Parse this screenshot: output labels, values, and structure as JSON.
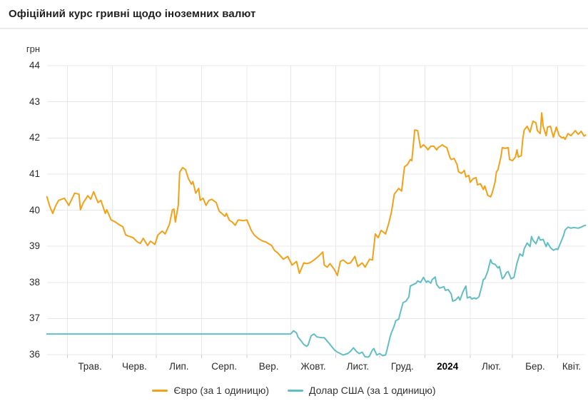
{
  "title": "Офіційний курс гривні щодо іноземних валют",
  "chart_data": {
    "type": "line",
    "title": "Офіційний курс гривні щодо іноземних валют",
    "y_axis_unit": "грн",
    "ylim": [
      36,
      44
    ],
    "y_ticks": [
      44,
      43,
      42,
      41,
      40,
      39,
      38,
      37,
      36
    ],
    "grid": true,
    "legend_position": "bottom",
    "x_domain_days": 369,
    "month_start_days": [
      14,
      45,
      75,
      106,
      137,
      167,
      198,
      228,
      259,
      290,
      319,
      350
    ],
    "x_month_labels": [
      "Трав.",
      "Черв.",
      "Лип.",
      "Серп.",
      "Вер.",
      "Жовт.",
      "Лист.",
      "Груд.",
      "2024",
      "Лют.",
      "Бер.",
      "Квіт."
    ],
    "bold_x_label": "2024",
    "colors": {
      "grid": "#e8e8e8",
      "tick": "#c9c9c9",
      "axis_text": "#2b2b2b"
    },
    "series": [
      {
        "id": "euro",
        "name": "Євро (за 1 одиницю)",
        "color": "#f2a119",
        "points": [
          [
            0,
            40.37
          ],
          [
            2,
            40.1
          ],
          [
            4,
            39.91
          ],
          [
            6,
            40.12
          ],
          [
            8,
            40.27
          ],
          [
            12,
            40.33
          ],
          [
            14,
            40.2
          ],
          [
            15,
            40.13
          ],
          [
            17,
            40.3
          ],
          [
            19,
            40.47
          ],
          [
            22,
            40.44
          ],
          [
            23,
            40.01
          ],
          [
            25,
            40.21
          ],
          [
            28,
            40.4
          ],
          [
            30,
            40.3
          ],
          [
            32,
            40.51
          ],
          [
            35,
            40.21
          ],
          [
            37,
            40.27
          ],
          [
            40,
            39.91
          ],
          [
            41,
            40.01
          ],
          [
            44,
            39.73
          ],
          [
            47,
            39.67
          ],
          [
            49,
            39.61
          ],
          [
            52,
            39.54
          ],
          [
            54,
            39.31
          ],
          [
            56,
            39.28
          ],
          [
            59,
            39.24
          ],
          [
            62,
            39.12
          ],
          [
            64,
            39.08
          ],
          [
            66,
            39.22
          ],
          [
            69,
            39.02
          ],
          [
            71,
            39.14
          ],
          [
            74,
            39.05
          ],
          [
            76,
            39.31
          ],
          [
            79,
            39.42
          ],
          [
            81,
            39.34
          ],
          [
            84,
            39.61
          ],
          [
            86,
            40.01
          ],
          [
            87,
            40.03
          ],
          [
            88,
            39.67
          ],
          [
            90,
            40.13
          ],
          [
            91,
            41.05
          ],
          [
            93,
            41.18
          ],
          [
            95,
            41.12
          ],
          [
            97,
            40.87
          ],
          [
            99,
            40.72
          ],
          [
            100,
            40.79
          ],
          [
            102,
            40.47
          ],
          [
            104,
            40.6
          ],
          [
            105,
            40.27
          ],
          [
            107,
            40.33
          ],
          [
            109,
            40.13
          ],
          [
            111,
            40.27
          ],
          [
            113,
            40.3
          ],
          [
            116,
            40.21
          ],
          [
            118,
            39.97
          ],
          [
            122,
            39.83
          ],
          [
            123,
            39.91
          ],
          [
            125,
            39.72
          ],
          [
            127,
            39.67
          ],
          [
            129,
            39.58
          ],
          [
            131,
            39.73
          ],
          [
            135,
            39.71
          ],
          [
            137,
            39.73
          ],
          [
            140,
            39.44
          ],
          [
            142,
            39.31
          ],
          [
            145,
            39.21
          ],
          [
            148,
            39.14
          ],
          [
            150,
            39.12
          ],
          [
            154,
            39.02
          ],
          [
            156,
            38.88
          ],
          [
            158,
            38.82
          ],
          [
            162,
            38.64
          ],
          [
            165,
            38.72
          ],
          [
            168,
            38.48
          ],
          [
            171,
            38.58
          ],
          [
            173,
            38.25
          ],
          [
            176,
            38.54
          ],
          [
            178,
            38.52
          ],
          [
            180,
            38.54
          ],
          [
            183,
            38.62
          ],
          [
            186,
            38.72
          ],
          [
            189,
            38.84
          ],
          [
            190,
            38.48
          ],
          [
            192,
            38.42
          ],
          [
            194,
            38.52
          ],
          [
            197,
            38.35
          ],
          [
            199,
            38.19
          ],
          [
            201,
            38.58
          ],
          [
            203,
            38.62
          ],
          [
            206,
            38.52
          ],
          [
            208,
            38.54
          ],
          [
            211,
            38.72
          ],
          [
            213,
            38.44
          ],
          [
            216,
            38.54
          ],
          [
            218,
            38.42
          ],
          [
            221,
            38.64
          ],
          [
            223,
            38.62
          ],
          [
            225,
            39.34
          ],
          [
            227,
            39.24
          ],
          [
            229,
            39.44
          ],
          [
            232,
            39.34
          ],
          [
            234,
            39.61
          ],
          [
            236,
            39.93
          ],
          [
            238,
            40.44
          ],
          [
            241,
            40.6
          ],
          [
            243,
            40.53
          ],
          [
            244,
            40.87
          ],
          [
            245,
            41.2
          ],
          [
            247,
            41.26
          ],
          [
            249,
            41.4
          ],
          [
            250,
            41.37
          ],
          [
            252,
            42.22
          ],
          [
            254,
            42.2
          ],
          [
            255,
            41.96
          ],
          [
            256,
            41.73
          ],
          [
            258,
            41.81
          ],
          [
            260,
            41.73
          ],
          [
            261,
            41.67
          ],
          [
            263,
            41.77
          ],
          [
            265,
            41.77
          ],
          [
            267,
            41.67
          ],
          [
            268,
            41.73
          ],
          [
            271,
            41.81
          ],
          [
            272,
            41.77
          ],
          [
            274,
            41.73
          ],
          [
            276,
            41.47
          ],
          [
            277,
            41.4
          ],
          [
            279,
            41.43
          ],
          [
            281,
            41.26
          ],
          [
            282,
            41.06
          ],
          [
            284,
            41.02
          ],
          [
            286,
            41.1
          ],
          [
            287,
            40.92
          ],
          [
            289,
            40.96
          ],
          [
            290,
            40.77
          ],
          [
            292,
            40.87
          ],
          [
            294,
            40.9
          ],
          [
            295,
            40.7
          ],
          [
            297,
            40.73
          ],
          [
            299,
            40.57
          ],
          [
            300,
            40.67
          ],
          [
            302,
            40.41
          ],
          [
            304,
            40.37
          ],
          [
            305,
            40.47
          ],
          [
            307,
            40.77
          ],
          [
            308,
            41.06
          ],
          [
            309,
            41.12
          ],
          [
            311,
            41.47
          ],
          [
            312,
            41.73
          ],
          [
            314,
            41.71
          ],
          [
            316,
            41.73
          ],
          [
            317,
            41.4
          ],
          [
            319,
            41.37
          ],
          [
            321,
            41.47
          ],
          [
            322,
            41.67
          ],
          [
            323,
            41.47
          ],
          [
            325,
            41.51
          ],
          [
            326,
            41.96
          ],
          [
            327,
            42.22
          ],
          [
            329,
            42.32
          ],
          [
            331,
            42.16
          ],
          [
            332,
            42.32
          ],
          [
            333,
            42.46
          ],
          [
            335,
            42.42
          ],
          [
            336,
            42.2
          ],
          [
            338,
            42.12
          ],
          [
            339,
            42.69
          ],
          [
            340,
            42.32
          ],
          [
            342,
            42.06
          ],
          [
            343,
            42.3
          ],
          [
            345,
            42.32
          ],
          [
            347,
            42.02
          ],
          [
            349,
            42.3
          ],
          [
            351,
            42.06
          ],
          [
            353,
            42.0
          ],
          [
            354,
            42.02
          ],
          [
            355,
            41.96
          ],
          [
            357,
            42.12
          ],
          [
            359,
            42.06
          ],
          [
            362,
            42.2
          ],
          [
            364,
            42.1
          ],
          [
            366,
            42.18
          ],
          [
            368,
            42.05
          ],
          [
            369,
            42.08
          ]
        ]
      },
      {
        "id": "usd",
        "name": "Долар США (за 1 одиницю)",
        "color": "#63bec4",
        "points": [
          [
            0,
            36.57
          ],
          [
            167,
            36.57
          ],
          [
            169,
            36.66
          ],
          [
            171,
            36.6
          ],
          [
            172,
            36.49
          ],
          [
            174,
            36.39
          ],
          [
            176,
            36.28
          ],
          [
            178,
            36.23
          ],
          [
            179,
            36.27
          ],
          [
            181,
            36.52
          ],
          [
            183,
            36.57
          ],
          [
            185,
            36.49
          ],
          [
            188,
            36.47
          ],
          [
            190,
            36.47
          ],
          [
            193,
            36.33
          ],
          [
            195,
            36.23
          ],
          [
            197,
            36.13
          ],
          [
            199,
            36.07
          ],
          [
            201,
            36.03
          ],
          [
            203,
            35.99
          ],
          [
            206,
            36.03
          ],
          [
            208,
            36.09
          ],
          [
            210,
            36.19
          ],
          [
            212,
            36.09
          ],
          [
            214,
            36.03
          ],
          [
            216,
            36.07
          ],
          [
            218,
            35.94
          ],
          [
            220,
            35.93
          ],
          [
            221,
            35.96
          ],
          [
            223,
            36.13
          ],
          [
            224,
            36.17
          ],
          [
            226,
            35.99
          ],
          [
            228,
            36.03
          ],
          [
            230,
            35.97
          ],
          [
            232,
            35.99
          ],
          [
            233,
            36.13
          ],
          [
            235,
            36.47
          ],
          [
            236,
            36.6
          ],
          [
            238,
            36.8
          ],
          [
            239,
            36.94
          ],
          [
            241,
            36.98
          ],
          [
            242,
            37.14
          ],
          [
            244,
            37.44
          ],
          [
            246,
            37.48
          ],
          [
            248,
            37.6
          ],
          [
            249,
            37.9
          ],
          [
            251,
            37.94
          ],
          [
            253,
            37.98
          ],
          [
            254,
            38.04
          ],
          [
            256,
            38.0
          ],
          [
            258,
            38.14
          ],
          [
            260,
            38.0
          ],
          [
            261,
            38.04
          ],
          [
            263,
            37.98
          ],
          [
            264,
            38.08
          ],
          [
            266,
            38.15
          ],
          [
            267,
            37.94
          ],
          [
            269,
            37.84
          ],
          [
            272,
            37.88
          ],
          [
            273,
            37.78
          ],
          [
            275,
            37.8
          ],
          [
            277,
            37.68
          ],
          [
            278,
            37.48
          ],
          [
            280,
            37.51
          ],
          [
            282,
            37.6
          ],
          [
            283,
            37.51
          ],
          [
            285,
            37.74
          ],
          [
            287,
            37.9
          ],
          [
            288,
            37.57
          ],
          [
            290,
            37.6
          ],
          [
            291,
            37.54
          ],
          [
            293,
            37.57
          ],
          [
            294,
            37.54
          ],
          [
            296,
            37.6
          ],
          [
            298,
            37.9
          ],
          [
            299,
            38.08
          ],
          [
            300,
            38.1
          ],
          [
            302,
            38.3
          ],
          [
            304,
            38.63
          ],
          [
            305,
            38.53
          ],
          [
            307,
            38.5
          ],
          [
            309,
            38.4
          ],
          [
            310,
            38.44
          ],
          [
            312,
            38.1
          ],
          [
            313,
            38.14
          ],
          [
            315,
            38.28
          ],
          [
            316,
            38.3
          ],
          [
            318,
            38.1
          ],
          [
            320,
            38.14
          ],
          [
            321,
            38.33
          ],
          [
            322,
            38.53
          ],
          [
            324,
            38.79
          ],
          [
            326,
            38.73
          ],
          [
            327,
            38.93
          ],
          [
            329,
            39.09
          ],
          [
            331,
            38.99
          ],
          [
            332,
            39.27
          ],
          [
            333,
            39.17
          ],
          [
            335,
            39.07
          ],
          [
            337,
            39.27
          ],
          [
            338,
            39.17
          ],
          [
            340,
            39.19
          ],
          [
            342,
            38.99
          ],
          [
            343,
            39.1
          ],
          [
            345,
            38.96
          ],
          [
            347,
            38.89
          ],
          [
            349,
            38.93
          ],
          [
            350,
            38.91
          ],
          [
            352,
            39.1
          ],
          [
            354,
            39.3
          ],
          [
            355,
            39.45
          ],
          [
            357,
            39.53
          ],
          [
            359,
            39.5
          ],
          [
            361,
            39.52
          ],
          [
            364,
            39.5
          ],
          [
            366,
            39.53
          ],
          [
            368,
            39.57
          ],
          [
            369,
            39.58
          ]
        ]
      }
    ]
  }
}
